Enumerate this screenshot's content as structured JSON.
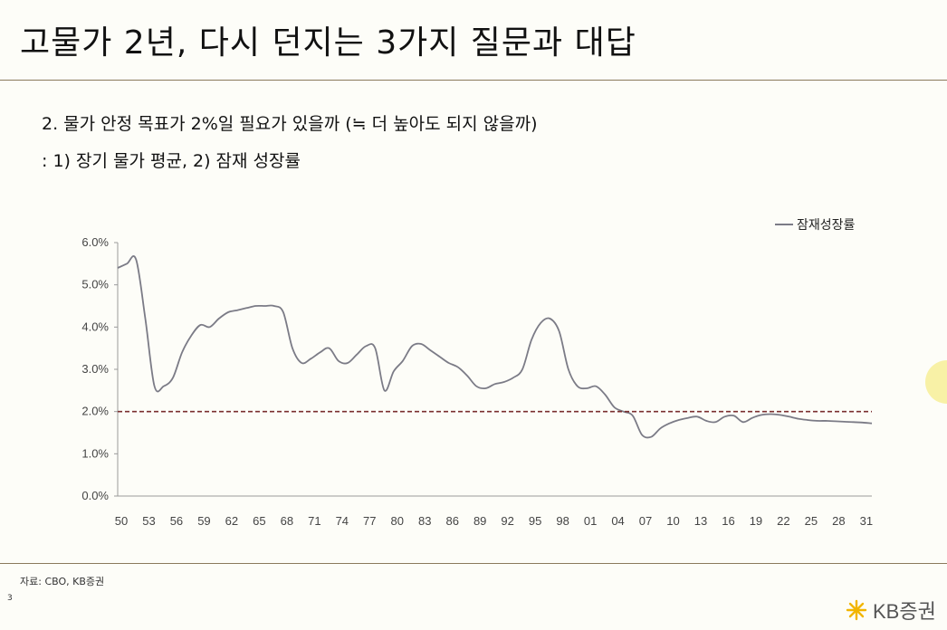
{
  "slide": {
    "title": "고물가 2년, 다시 던지는 3가지 질문과 대답",
    "subtitle_1": "2. 물가 안정 목표가 2%일 필요가 있을까 (≒ 더 높아도 되지 않을까)",
    "subtitle_2": ": 1) 장기 물가 평균, 2) 잠재 성장률",
    "source": "자료: CBO, KB증권",
    "page_number": "3",
    "logo_text": "KB증권",
    "logo_icon": "kb-star-icon"
  },
  "colors": {
    "series_line": "#7b7b86",
    "reference_line": "#7a2f2f",
    "rule": "#8a7a5c",
    "logo_star": "#f2b500"
  },
  "chart_data": {
    "type": "line",
    "xlabel": "",
    "ylabel": "",
    "x_tick_labels": [
      "50",
      "53",
      "56",
      "59",
      "62",
      "65",
      "68",
      "71",
      "74",
      "77",
      "80",
      "83",
      "86",
      "89",
      "92",
      "95",
      "98",
      "01",
      "04",
      "07",
      "10",
      "13",
      "16",
      "19",
      "22",
      "25",
      "28",
      "31"
    ],
    "y_tick_labels": [
      "0.0%",
      "1.0%",
      "2.0%",
      "3.0%",
      "4.0%",
      "5.0%",
      "6.0%"
    ],
    "ylim": [
      0,
      6
    ],
    "xlim": [
      1950,
      2032
    ],
    "grid": false,
    "legend_position": "top-right",
    "series": [
      {
        "name": "잠재성장률",
        "x": [
          1950,
          1951,
          1952,
          1953,
          1954,
          1955,
          1956,
          1957,
          1958,
          1959,
          1960,
          1961,
          1962,
          1963,
          1964,
          1965,
          1966,
          1967,
          1968,
          1969,
          1970,
          1971,
          1972,
          1973,
          1974,
          1975,
          1976,
          1977,
          1978,
          1979,
          1980,
          1981,
          1982,
          1983,
          1984,
          1985,
          1986,
          1987,
          1988,
          1989,
          1990,
          1991,
          1992,
          1993,
          1994,
          1995,
          1996,
          1997,
          1998,
          1999,
          2000,
          2001,
          2002,
          2003,
          2004,
          2005,
          2006,
          2007,
          2008,
          2009,
          2010,
          2011,
          2012,
          2013,
          2014,
          2015,
          2016,
          2017,
          2018,
          2019,
          2020,
          2021,
          2022,
          2023,
          2024,
          2025,
          2026,
          2027,
          2028,
          2029,
          2030,
          2031,
          2032
        ],
        "values": [
          5.4,
          5.5,
          5.6,
          4.2,
          2.6,
          2.6,
          2.8,
          3.4,
          3.8,
          4.05,
          4.0,
          4.2,
          4.35,
          4.4,
          4.45,
          4.5,
          4.5,
          4.5,
          4.35,
          3.5,
          3.15,
          3.25,
          3.4,
          3.5,
          3.2,
          3.15,
          3.35,
          3.55,
          3.5,
          2.5,
          2.95,
          3.2,
          3.55,
          3.6,
          3.45,
          3.3,
          3.15,
          3.05,
          2.85,
          2.6,
          2.55,
          2.65,
          2.7,
          2.8,
          3.0,
          3.7,
          4.1,
          4.2,
          3.9,
          3.0,
          2.6,
          2.55,
          2.6,
          2.4,
          2.1,
          2.0,
          1.9,
          1.45,
          1.4,
          1.6,
          1.72,
          1.8,
          1.85,
          1.88,
          1.78,
          1.75,
          1.88,
          1.9,
          1.75,
          1.85,
          1.92,
          1.94,
          1.92,
          1.88,
          1.83,
          1.8,
          1.78,
          1.78,
          1.77,
          1.76,
          1.75,
          1.74,
          1.72
        ]
      },
      {
        "name": "",
        "reference": true,
        "x": [
          1950,
          2032
        ],
        "values": [
          2.0,
          2.0
        ]
      }
    ]
  }
}
